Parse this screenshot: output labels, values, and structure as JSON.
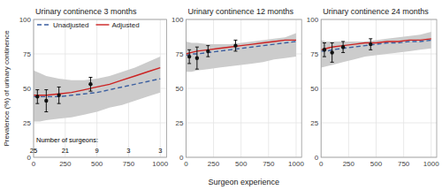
{
  "chart_data": [
    {
      "type": "line",
      "title": "Urinary continence 3 months",
      "y_label": "Prevalence (%) of urinary continence",
      "xlim": [
        0,
        1050
      ],
      "xticks": [
        0,
        250,
        500,
        750,
        1000
      ],
      "ylim": [
        0,
        100
      ],
      "yticks": [
        0,
        25,
        50,
        75,
        100
      ],
      "grid": true,
      "legend": "upper left",
      "series": [
        {
          "type": "area",
          "color": "#CCCCCC",
          "x": [
            0,
            50,
            100,
            200,
            300,
            400,
            500,
            600,
            700,
            800,
            900,
            1000
          ],
          "upper": [
            63,
            61,
            59,
            57,
            56,
            56,
            57,
            59,
            62,
            65,
            69,
            73
          ],
          "lower": [
            26,
            26,
            27,
            28,
            29,
            31,
            33,
            36,
            38,
            41,
            44,
            47
          ]
        },
        {
          "name": "Unadjusted",
          "type": "line",
          "line_style": "dashed",
          "color": "#3B5FA0",
          "x": [
            0,
            50,
            100,
            200,
            300,
            400,
            500,
            600,
            700,
            800,
            900,
            1000
          ],
          "values": [
            44,
            44,
            44,
            44,
            45,
            46,
            47,
            49,
            51,
            53,
            55,
            57
          ]
        },
        {
          "name": "Adjusted",
          "type": "line",
          "line_style": "solid",
          "color": "#CC2222",
          "x": [
            0,
            50,
            100,
            200,
            300,
            400,
            500,
            600,
            700,
            800,
            900,
            1000
          ],
          "values": [
            45,
            45,
            45,
            46,
            47,
            49,
            51,
            53,
            56,
            59,
            62,
            65
          ]
        },
        {
          "type": "scatter",
          "marker": "circle",
          "color": "#111111",
          "x": [
            30,
            100,
            200,
            450
          ],
          "values": [
            44,
            41,
            45,
            53
          ],
          "error_low": [
            5,
            8,
            6,
            5
          ],
          "error_high": [
            5,
            8,
            6,
            5
          ]
        }
      ],
      "annotations": [
        {
          "text": "Number of surgeons:"
        },
        {
          "text": "25",
          "x": 0
        },
        {
          "text": "21",
          "x": 250
        },
        {
          "text": "9",
          "x": 500
        },
        {
          "text": "3",
          "x": 750
        },
        {
          "text": "3",
          "x": 1000
        }
      ]
    },
    {
      "type": "line",
      "title": "Urinary continence 12 months",
      "x_label": "Surgeon experience",
      "xlim": [
        0,
        1050
      ],
      "xticks": [
        0,
        250,
        500,
        750,
        1000
      ],
      "ylim": [
        0,
        100
      ],
      "yticks": [
        0,
        25,
        50,
        75,
        100
      ],
      "grid": true,
      "series": [
        {
          "type": "area",
          "color": "#CCCCCC",
          "x": [
            0,
            50,
            100,
            200,
            300,
            400,
            500,
            600,
            700,
            800,
            900,
            1000
          ],
          "upper": [
            84,
            83,
            83,
            82,
            82,
            82,
            83,
            84,
            85,
            86,
            87,
            90
          ],
          "lower": [
            62,
            62,
            63,
            64,
            65,
            66,
            67,
            68,
            69,
            71,
            72,
            73
          ]
        },
        {
          "type": "line",
          "line_style": "dashed",
          "color": "#3B5FA0",
          "x": [
            0,
            50,
            100,
            200,
            300,
            400,
            500,
            600,
            700,
            800,
            900,
            1000
          ],
          "values": [
            74,
            75,
            75,
            76,
            77,
            78,
            79,
            80,
            81,
            82,
            83,
            84
          ]
        },
        {
          "type": "line",
          "line_style": "solid",
          "color": "#CC2222",
          "x": [
            0,
            50,
            100,
            200,
            300,
            400,
            500,
            600,
            700,
            800,
            900,
            1000
          ],
          "values": [
            75,
            76,
            77,
            78,
            79,
            80,
            81,
            82,
            83,
            84,
            85,
            85
          ]
        },
        {
          "type": "scatter",
          "marker": "circle",
          "color": "#111111",
          "x": [
            30,
            100,
            200,
            450
          ],
          "values": [
            73,
            72,
            77,
            81
          ],
          "error_low": [
            5,
            8,
            4,
            4
          ],
          "error_high": [
            5,
            8,
            4,
            4
          ]
        }
      ]
    },
    {
      "type": "line",
      "title": "Urinary continence 24 months",
      "xlim": [
        0,
        1050
      ],
      "xticks": [
        0,
        250,
        500,
        750,
        1000
      ],
      "ylim": [
        0,
        100
      ],
      "yticks": [
        0,
        25,
        50,
        75,
        100
      ],
      "grid": true,
      "series": [
        {
          "type": "area",
          "color": "#CCCCCC",
          "x": [
            0,
            50,
            100,
            200,
            300,
            400,
            500,
            600,
            700,
            800,
            900,
            1000
          ],
          "upper": [
            85,
            84,
            84,
            84,
            84,
            84,
            85,
            86,
            87,
            88,
            89,
            91
          ],
          "lower": [
            65,
            66,
            67,
            69,
            71,
            73,
            74,
            75,
            76,
            77,
            78,
            79
          ]
        },
        {
          "type": "line",
          "line_style": "dashed",
          "color": "#3B5FA0",
          "x": [
            0,
            50,
            100,
            200,
            300,
            400,
            500,
            600,
            700,
            800,
            900,
            1000
          ],
          "values": [
            77,
            77,
            78,
            79,
            80,
            81,
            82,
            83,
            83,
            84,
            84,
            85
          ]
        },
        {
          "type": "line",
          "line_style": "solid",
          "color": "#CC2222",
          "x": [
            0,
            50,
            100,
            200,
            300,
            400,
            500,
            600,
            700,
            800,
            900,
            1000
          ],
          "values": [
            78,
            79,
            80,
            81,
            82,
            83,
            83,
            84,
            84,
            85,
            85,
            86
          ]
        },
        {
          "type": "scatter",
          "marker": "circle",
          "color": "#111111",
          "x": [
            30,
            100,
            200,
            450
          ],
          "values": [
            78,
            76,
            80,
            82
          ],
          "error_low": [
            5,
            7,
            4,
            4
          ],
          "error_high": [
            5,
            7,
            4,
            4
          ]
        }
      ]
    }
  ]
}
